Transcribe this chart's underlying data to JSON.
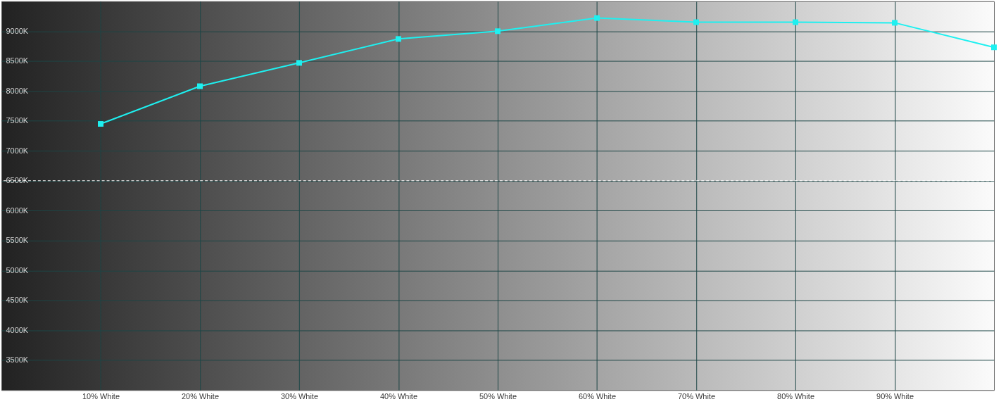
{
  "chart_data": {
    "type": "line",
    "x": [
      10,
      20,
      30,
      40,
      50,
      60,
      70,
      80,
      90,
      100
    ],
    "series": [
      {
        "color": "#1ef0f0",
        "values": [
          7450,
          8080,
          8470,
          8870,
          9000,
          9220,
          9150,
          9150,
          9140,
          8730
        ]
      }
    ],
    "xlim": [
      0,
      100
    ],
    "xticks": [
      {
        "value": 10,
        "label": "10% White"
      },
      {
        "value": 20,
        "label": "20% White"
      },
      {
        "value": 30,
        "label": "30% White"
      },
      {
        "value": 40,
        "label": "40% White"
      },
      {
        "value": 50,
        "label": "50% White"
      },
      {
        "value": 60,
        "label": "60% White"
      },
      {
        "value": 70,
        "label": "70% White"
      },
      {
        "value": 80,
        "label": "80% White"
      },
      {
        "value": 90,
        "label": "90% White"
      }
    ],
    "ylim": [
      3000,
      9500
    ],
    "yticks": [
      {
        "value": 3500,
        "label": "3500K"
      },
      {
        "value": 4000,
        "label": "4000K"
      },
      {
        "value": 4500,
        "label": "4500K"
      },
      {
        "value": 5000,
        "label": "5000K"
      },
      {
        "value": 5500,
        "label": "5500K"
      },
      {
        "value": 6000,
        "label": "6000K"
      },
      {
        "value": 6500,
        "label": "6500K"
      },
      {
        "value": 7000,
        "label": "7000K"
      },
      {
        "value": 7500,
        "label": "7500K"
      },
      {
        "value": 8000,
        "label": "8000K"
      },
      {
        "value": 8500,
        "label": "8500K"
      },
      {
        "value": 9000,
        "label": "9000K"
      }
    ],
    "ref_lines": [
      {
        "axis": "y",
        "value": 6500,
        "color": "#ffffff",
        "line_style": "dashed"
      }
    ],
    "grid": true,
    "marker": "square",
    "line_style": "solid"
  }
}
